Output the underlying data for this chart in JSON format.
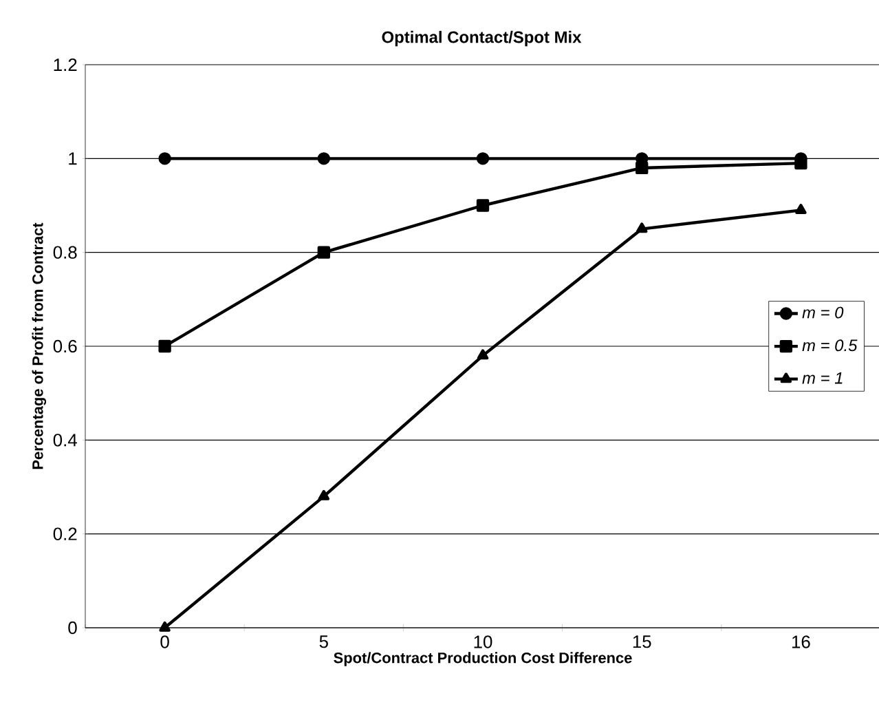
{
  "chart_data": {
    "type": "line",
    "title": "Optimal Contact/Spot Mix",
    "xlabel": "Spot/Contract Production Cost Difference",
    "ylabel": "Percentage of Profit from Contract",
    "categories": [
      "0",
      "5",
      "10",
      "15",
      "16"
    ],
    "series": [
      {
        "name": "*m = 0*",
        "color": "#000000",
        "marker": "circle",
        "values": [
          1,
          1,
          1,
          1,
          1
        ]
      },
      {
        "name": "*m = 0.5*",
        "color": "#000000",
        "marker": "square",
        "values": [
          0.6,
          0.8,
          0.9,
          0.98,
          0.99
        ]
      },
      {
        "name": "*m = 1*",
        "color": "#000000",
        "marker": "triangle",
        "values": [
          0,
          0.28,
          0.58,
          0.85,
          0.89
        ]
      }
    ],
    "ylim": [
      0,
      1.2
    ],
    "yticks": [
      0,
      0.2,
      0.4,
      0.6,
      0.8,
      1,
      1.2
    ],
    "grid": "y",
    "legend": "right",
    "line_style": "solid"
  }
}
